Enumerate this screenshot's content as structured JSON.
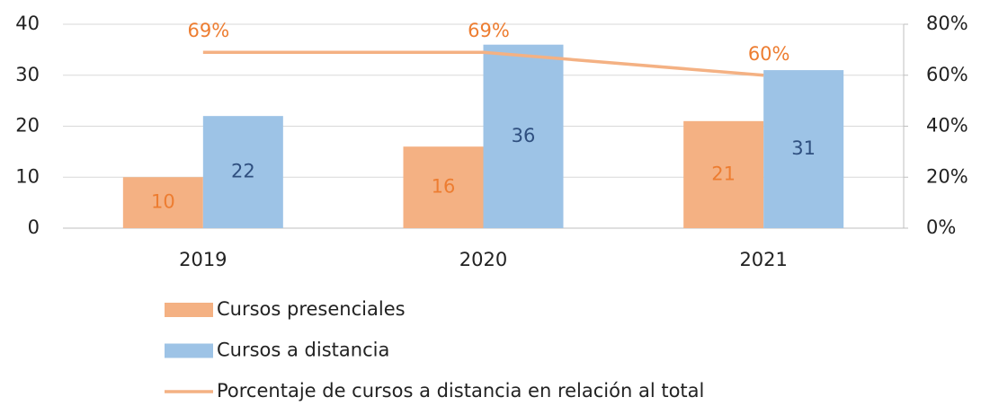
{
  "chart_data": {
    "type": "bar",
    "categories": [
      "2019",
      "2020",
      "2021"
    ],
    "series": [
      {
        "name": "Cursos presenciales",
        "color": "#f4b183",
        "label_color": "#ed7d31",
        "values": [
          10,
          16,
          21
        ]
      },
      {
        "name": "Cursos a distancia",
        "color": "#9dc3e6",
        "label_color": "#2f4f7f",
        "values": [
          22,
          36,
          31
        ]
      },
      {
        "name": "Porcentaje de cursos a distancia en relación al total",
        "type": "line",
        "axis": "y2",
        "color": "#f4b183",
        "label_color": "#ed7d31",
        "values": [
          69,
          69,
          60
        ],
        "value_labels": [
          "69%",
          "69%",
          "60%"
        ]
      }
    ],
    "ylim": [
      0,
      40
    ],
    "yticks": [
      0,
      10,
      20,
      30,
      40
    ],
    "y2lim": [
      0,
      80
    ],
    "y2ticks": [
      {
        "value": 0,
        "label": "0%"
      },
      {
        "value": 20,
        "label": "20%"
      },
      {
        "value": 40,
        "label": "40%"
      },
      {
        "value": 60,
        "label": "60%"
      },
      {
        "value": 80,
        "label": "80%"
      }
    ],
    "grid": true,
    "legend": "bottom"
  }
}
